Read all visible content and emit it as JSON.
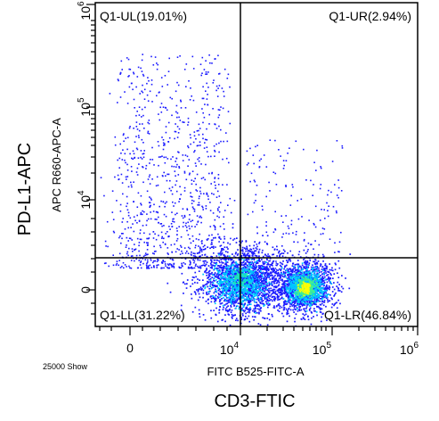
{
  "chart_data": {
    "type": "scatter",
    "plot_kind": "flow cytometry density dot plot",
    "x_axis": {
      "label": "FITC B525-FITC-A",
      "scale": "biexponential",
      "ticks": [
        {
          "base": "0",
          "exp": ""
        },
        {
          "base": "10",
          "exp": "4"
        },
        {
          "base": "10",
          "exp": "5"
        },
        {
          "base": "10",
          "exp": "6"
        }
      ]
    },
    "y_axis": {
      "label": "APC R660-APC-A",
      "scale": "biexponential",
      "ticks": [
        {
          "base": "0",
          "exp": ""
        },
        {
          "base": "10",
          "exp": "4"
        },
        {
          "base": "10",
          "exp": "5"
        },
        {
          "base": "10",
          "exp": "6"
        }
      ]
    },
    "outer_xlabel": "CD3-FTIC",
    "outer_ylabel": "PD-L1-APC",
    "event_count_label": "25000 Show",
    "quadrants": [
      {
        "name": "Q1-UL",
        "percent": 19.01,
        "text": "Q1-UL(19.01%)"
      },
      {
        "name": "Q1-UR",
        "percent": 2.94,
        "text": "Q1-UR(2.94%)"
      },
      {
        "name": "Q1-LL",
        "percent": 31.22,
        "text": "Q1-LL(31.22%)"
      },
      {
        "name": "Q1-LR",
        "percent": 46.84,
        "text": "Q1-LR(46.84%)"
      }
    ],
    "gate": {
      "x": 10000,
      "y": 1000
    },
    "populations": [
      {
        "label": "Q1-LL cluster",
        "x_center": 2000,
        "y_center": 0
      },
      {
        "label": "Q1-LR cluster",
        "x_center": 50000,
        "y_center": 0
      }
    ],
    "colors": {
      "sparse": "#1a1aff",
      "dense": "#00c8ff",
      "core": "#ffff00"
    }
  }
}
